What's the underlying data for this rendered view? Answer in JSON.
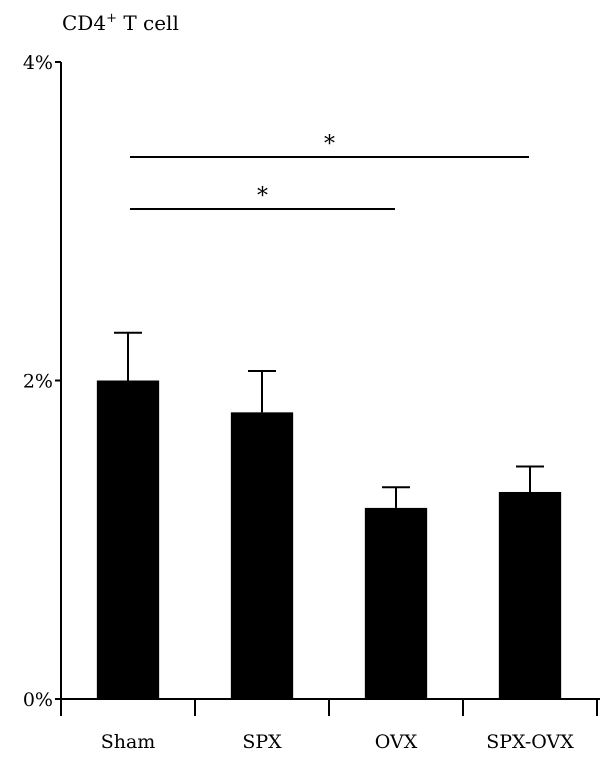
{
  "chart_data": {
    "type": "bar",
    "title_main": "CD4",
    "title_sup": "+",
    "title_rest": " T cell",
    "categories": [
      "Sham",
      "SPX",
      "OVX",
      "SPX-OVX"
    ],
    "values": [
      2.0,
      1.8,
      1.2,
      1.3
    ],
    "errors": [
      0.3,
      0.26,
      0.13,
      0.16
    ],
    "ylim": [
      0,
      4
    ],
    "yticks": [
      0,
      2,
      4
    ],
    "ytick_labels": [
      "0%",
      "2%",
      "4%"
    ],
    "bar_color": "#000000",
    "grid": false,
    "legend": "none",
    "significance": [
      {
        "from": "Sham",
        "to": "OVX",
        "label": "*"
      },
      {
        "from": "Sham",
        "to": "SPX-OVX",
        "label": "*"
      }
    ]
  }
}
